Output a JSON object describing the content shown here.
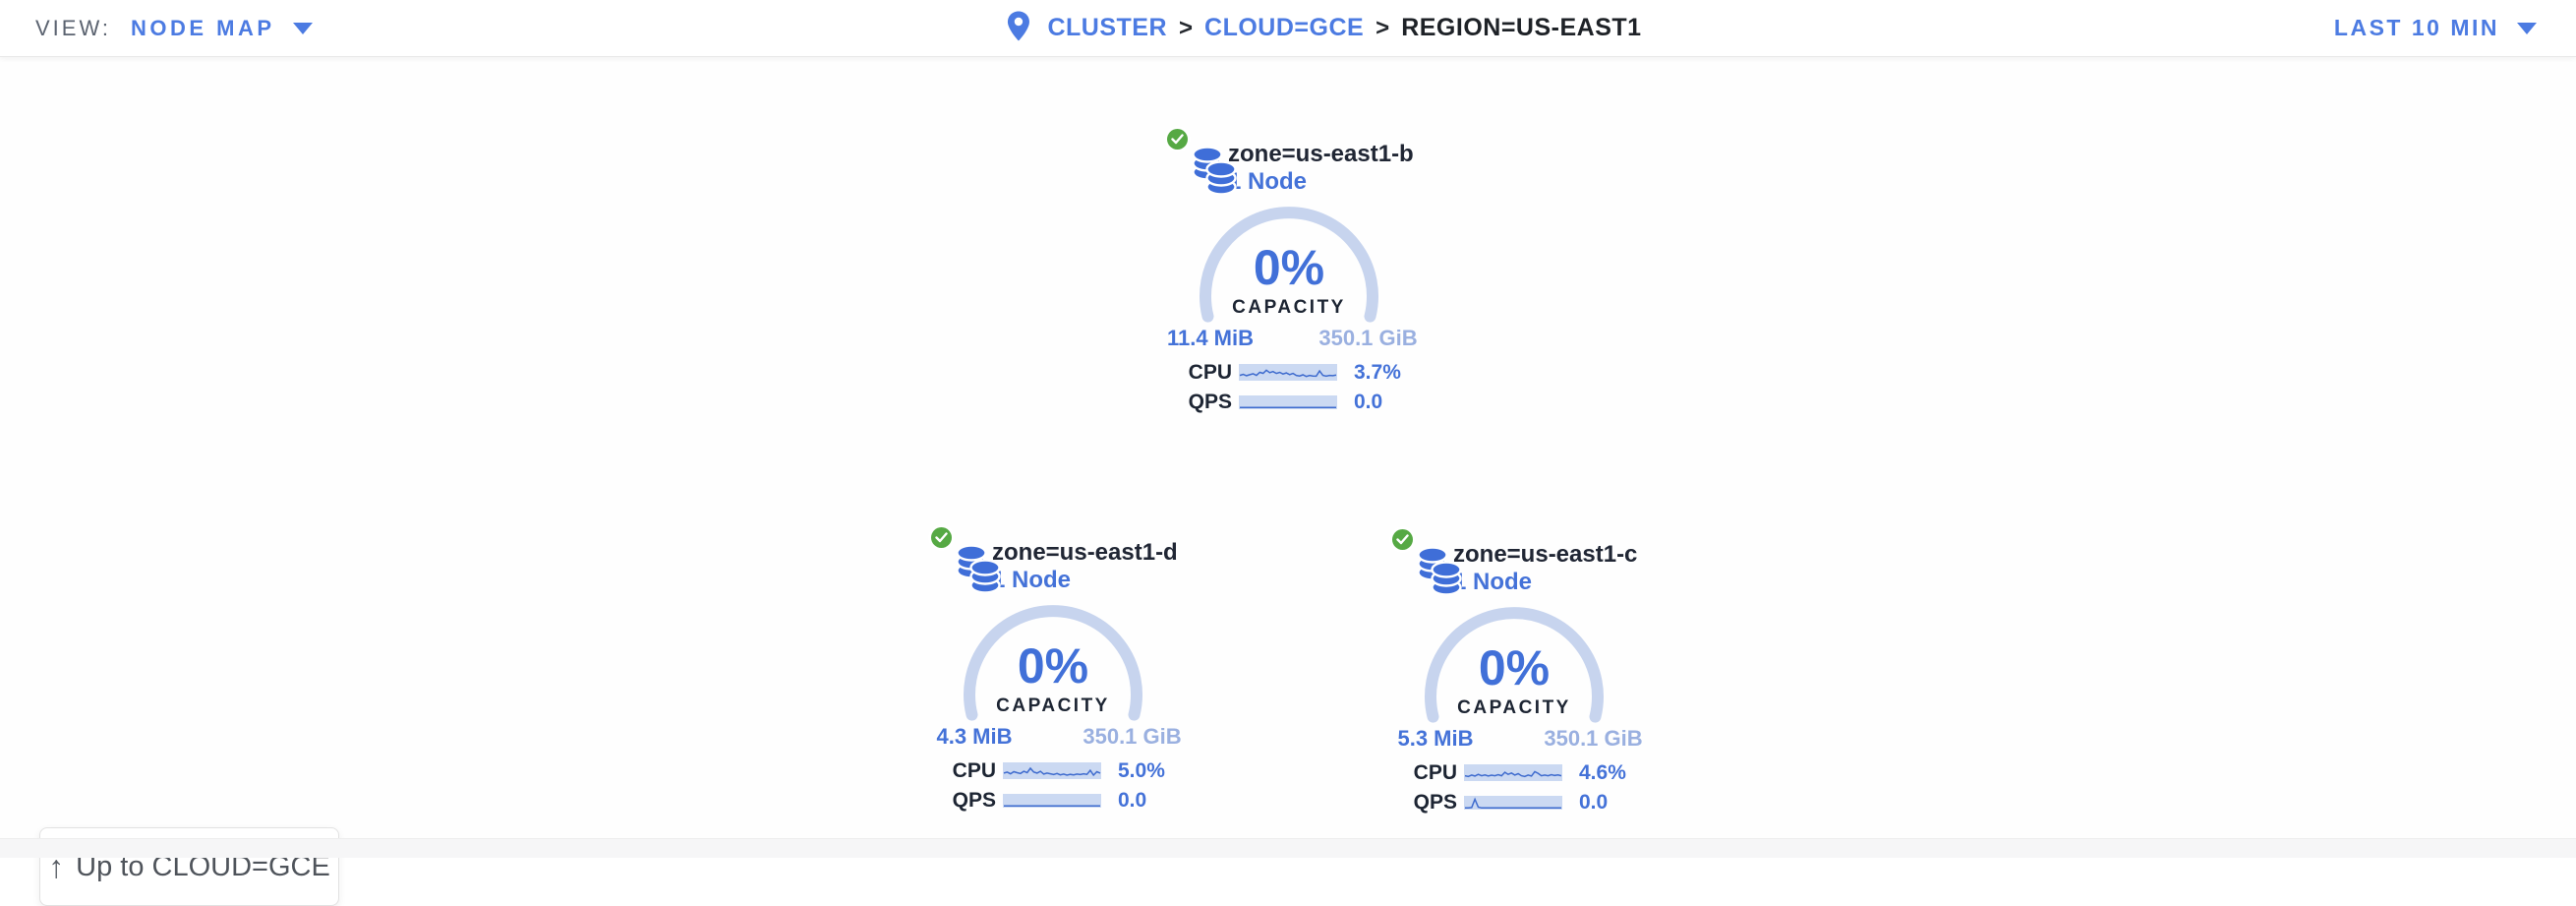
{
  "topbar": {
    "view_label": "VIEW:",
    "view_value": "NODE MAP",
    "breadcrumb": [
      {
        "label": "CLUSTER",
        "type": "link"
      },
      {
        "label": "CLOUD=GCE",
        "type": "link"
      },
      {
        "label": "REGION=US-EAST1",
        "type": "current"
      }
    ],
    "separator": ">",
    "time_range": "LAST 10 MIN"
  },
  "zones": [
    {
      "name": "zone=us-east1-b",
      "node_count": "1 Node",
      "status": "healthy",
      "capacity_pct": "0%",
      "capacity_label": "CAPACITY",
      "capacity_used": "11.4 MiB",
      "capacity_total": "350.1 GiB",
      "cpu_label": "CPU",
      "cpu_value": "3.7%",
      "qps_label": "QPS",
      "qps_value": "0.0",
      "cpu_spark": [
        0.3,
        0.38,
        0.28,
        0.35,
        0.42,
        0.3,
        0.52,
        0.45,
        0.68,
        0.5,
        0.58,
        0.44,
        0.52,
        0.4,
        0.48,
        0.36,
        0.44,
        0.3,
        0.26,
        0.34,
        0.22,
        0.3,
        0.26,
        0.24,
        0.62,
        0.3,
        0.24,
        0.3,
        0.28,
        0.32
      ],
      "qps_spark": [
        0.05,
        0.05,
        0.05,
        0.05,
        0.05,
        0.05,
        0.05,
        0.05,
        0.05,
        0.05,
        0.05,
        0.05,
        0.05,
        0.05,
        0.05,
        0.05,
        0.05,
        0.05,
        0.05,
        0.05,
        0.05,
        0.05,
        0.05,
        0.05,
        0.05,
        0.05,
        0.05,
        0.05,
        0.05,
        0.05
      ]
    },
    {
      "name": "zone=us-east1-d",
      "node_count": "1 Node",
      "status": "healthy",
      "capacity_pct": "0%",
      "capacity_label": "CAPACITY",
      "capacity_used": "4.3 MiB",
      "capacity_total": "350.1 GiB",
      "cpu_label": "CPU",
      "cpu_value": "5.0%",
      "qps_label": "QPS",
      "qps_value": "0.0",
      "cpu_spark": [
        0.35,
        0.42,
        0.3,
        0.45,
        0.38,
        0.32,
        0.48,
        0.38,
        0.7,
        0.42,
        0.35,
        0.48,
        0.28,
        0.35,
        0.3,
        0.25,
        0.32,
        0.22,
        0.28,
        0.2,
        0.26,
        0.22,
        0.28,
        0.24,
        0.3,
        0.26,
        0.55,
        0.2,
        0.45,
        0.35
      ],
      "qps_spark": [
        0.05,
        0.05,
        0.05,
        0.05,
        0.05,
        0.05,
        0.05,
        0.05,
        0.05,
        0.05,
        0.05,
        0.05,
        0.05,
        0.05,
        0.05,
        0.05,
        0.05,
        0.05,
        0.05,
        0.05,
        0.05,
        0.05,
        0.05,
        0.05,
        0.05,
        0.05,
        0.05,
        0.05,
        0.05,
        0.05
      ]
    },
    {
      "name": "zone=us-east1-c",
      "node_count": "1 Node",
      "status": "healthy",
      "capacity_pct": "0%",
      "capacity_label": "CAPACITY",
      "capacity_used": "5.3 MiB",
      "capacity_total": "350.1 GiB",
      "cpu_label": "CPU",
      "cpu_value": "4.6%",
      "qps_label": "QPS",
      "qps_value": "0.0",
      "cpu_spark": [
        0.3,
        0.25,
        0.35,
        0.28,
        0.4,
        0.3,
        0.36,
        0.28,
        0.34,
        0.3,
        0.38,
        0.3,
        0.55,
        0.4,
        0.5,
        0.35,
        0.45,
        0.3,
        0.25,
        0.35,
        0.28,
        0.6,
        0.48,
        0.3,
        0.35,
        0.3,
        0.38,
        0.32,
        0.36,
        0.3
      ],
      "qps_spark": [
        0.05,
        0.05,
        0.08,
        0.85,
        0.12,
        0.05,
        0.05,
        0.05,
        0.05,
        0.05,
        0.05,
        0.05,
        0.05,
        0.05,
        0.05,
        0.05,
        0.05,
        0.05,
        0.05,
        0.05,
        0.05,
        0.05,
        0.05,
        0.05,
        0.05,
        0.05,
        0.05,
        0.05,
        0.05,
        0.05
      ]
    }
  ],
  "up_button": {
    "arrow": "↑",
    "label": "Up to CLOUD=GCE"
  },
  "icons": {
    "map_pin": "map-pin-icon",
    "check": "check-icon",
    "database": "database-stack-icon",
    "chevron": "chevron-down-icon",
    "arrow_up": "arrow-up-icon"
  },
  "colors": {
    "link_blue": "#4c7be2",
    "value_blue": "#4472d8",
    "light_blue": "#9ab0e0",
    "arc_blue": "#c7d4ee",
    "spark_bg": "#cbd9f2",
    "spark_line": "#3e6bce",
    "dark_text": "#1d2533",
    "green_ok": "#56a944",
    "gray_label": "#5b6370",
    "button_text": "#4f545b"
  }
}
